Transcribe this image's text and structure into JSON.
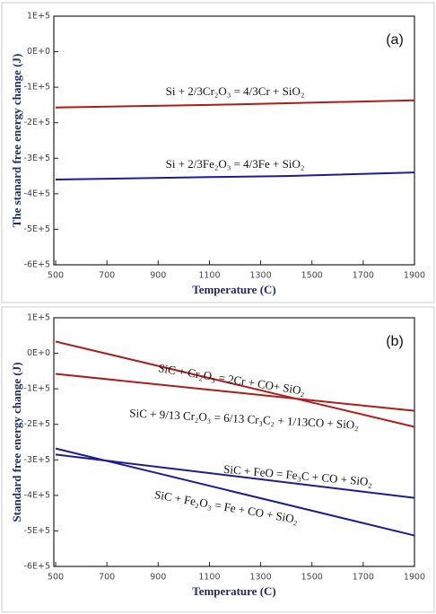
{
  "chart_data": [
    {
      "type": "line",
      "panel_label": "(a)",
      "x_label": "Temperature (C)",
      "y_label": "The stanard free energy change (J)",
      "xlim": [
        493,
        1900
      ],
      "xticks": [
        500,
        700,
        900,
        1100,
        1300,
        1500,
        1700,
        1900
      ],
      "ylim": [
        -600000,
        100000
      ],
      "yticks": [
        {
          "value": 100000,
          "label": "1E+5"
        },
        {
          "value": 0,
          "label": "0E+0"
        },
        {
          "value": -100000,
          "label": "-1E+5"
        },
        {
          "value": -200000,
          "label": "-2E+5"
        },
        {
          "value": -300000,
          "label": "-3E+5"
        },
        {
          "value": -400000,
          "label": "-4E+5"
        },
        {
          "value": -500000,
          "label": "-5E+5"
        },
        {
          "value": -600000,
          "label": "-6E+5"
        }
      ],
      "x": [
        500,
        1100,
        1400,
        1900
      ],
      "series": [
        {
          "name": "Si + 2/3Cr₂O₃ = 4/3Cr + SiO₂",
          "color": "#b01c1c",
          "values": [
            -157000,
            -150000,
            -145000,
            -137000
          ]
        },
        {
          "name": "Si + 2/3Fe₂O₃ = 4/3Fe + SiO₂",
          "color": "#1c1c9a",
          "values": [
            -360000,
            -353000,
            -350000,
            -340000
          ]
        }
      ]
    },
    {
      "type": "line",
      "panel_label": "(b)",
      "x_label": "Temperature (C)",
      "y_label": "Standard free energy change (J)",
      "xlim": [
        493,
        1900
      ],
      "xticks": [
        500,
        700,
        900,
        1100,
        1300,
        1500,
        1700,
        1900
      ],
      "ylim": [
        -600000,
        100000
      ],
      "yticks": [
        {
          "value": 100000,
          "label": "1E+5"
        },
        {
          "value": 0,
          "label": "0E+0"
        },
        {
          "value": -100000,
          "label": "-1E+5"
        },
        {
          "value": -200000,
          "label": "-2E+5"
        },
        {
          "value": -300000,
          "label": "-3E+5"
        },
        {
          "value": -400000,
          "label": "-4E+5"
        },
        {
          "value": -500000,
          "label": "-5E+5"
        },
        {
          "value": -600000,
          "label": "-6E+5"
        }
      ],
      "x": [
        500,
        1900
      ],
      "series": [
        {
          "name": "SiC + Cr₂O₃ = 2Cr + CO+ SiO₂",
          "color": "#b01c1c",
          "values": [
            33000,
            -207000
          ]
        },
        {
          "name": "SiC + 9/13 Cr₂O₃ = 6/13 Cr₃C₂ + 1/13CO + SiO₂",
          "color": "#b01c1c",
          "values": [
            -58000,
            -162000
          ]
        },
        {
          "name": "SiC + FeO = Fe₃C + CO + SiO₂",
          "color": "#1c1c9a",
          "values": [
            -285000,
            -407000
          ]
        },
        {
          "name": "SiC + Fe₂O₃ = Fe + CO + SiO₂",
          "color": "#1c1c9a",
          "values": [
            -268000,
            -513000
          ]
        }
      ]
    }
  ]
}
